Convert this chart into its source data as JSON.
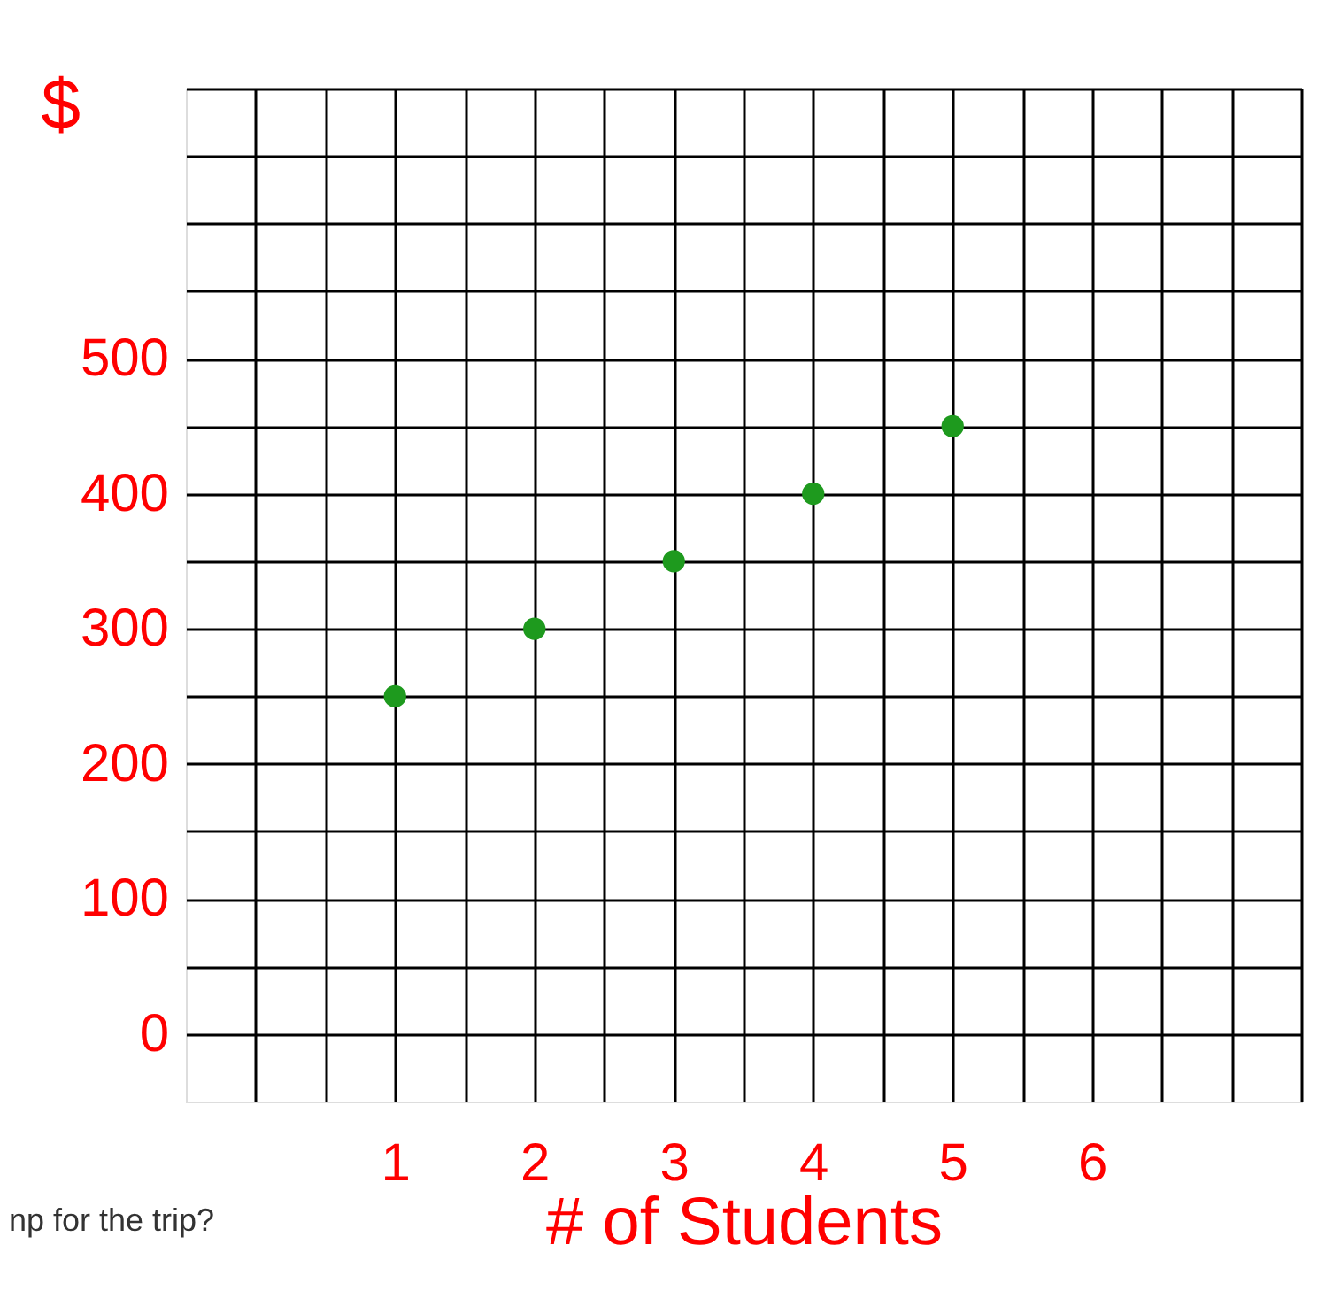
{
  "chart_data": {
    "type": "scatter",
    "xlabel": "# of Students",
    "ylabel": "$",
    "x": [
      1,
      2,
      3,
      4,
      5
    ],
    "series": [
      {
        "color": "#1e9a1e",
        "values": [
          250,
          300,
          350,
          400,
          450
        ]
      }
    ],
    "xlim": [
      -0.5,
      7.5
    ],
    "ylim": [
      -50,
      700
    ],
    "xticks": [
      {
        "value": 0,
        "label": null
      },
      {
        "value": 0.5,
        "label": null
      },
      1,
      {
        "value": 1.5,
        "label": null
      },
      2,
      {
        "value": 2.5,
        "label": null
      },
      3,
      {
        "value": 3.5,
        "label": null
      },
      4,
      {
        "value": 4.5,
        "label": null
      },
      5,
      {
        "value": 5.5,
        "label": null
      },
      6,
      {
        "value": 6.5,
        "label": null
      },
      {
        "value": 7,
        "label": null
      },
      {
        "value": 7.5,
        "label": null
      }
    ],
    "yticks": [
      0,
      {
        "value": 50,
        "label": null
      },
      100,
      {
        "value": 150,
        "label": null
      },
      200,
      {
        "value": 250,
        "label": null
      },
      300,
      {
        "value": 350,
        "label": null
      },
      400,
      {
        "value": 450,
        "label": null
      },
      500,
      {
        "value": 550,
        "label": null
      },
      {
        "value": 600,
        "label": null
      },
      {
        "value": 650,
        "label": null
      },
      {
        "value": 700,
        "label": null
      }
    ],
    "grid": true,
    "marker": "circle",
    "annotations": [
      "np for the trip?"
    ]
  }
}
